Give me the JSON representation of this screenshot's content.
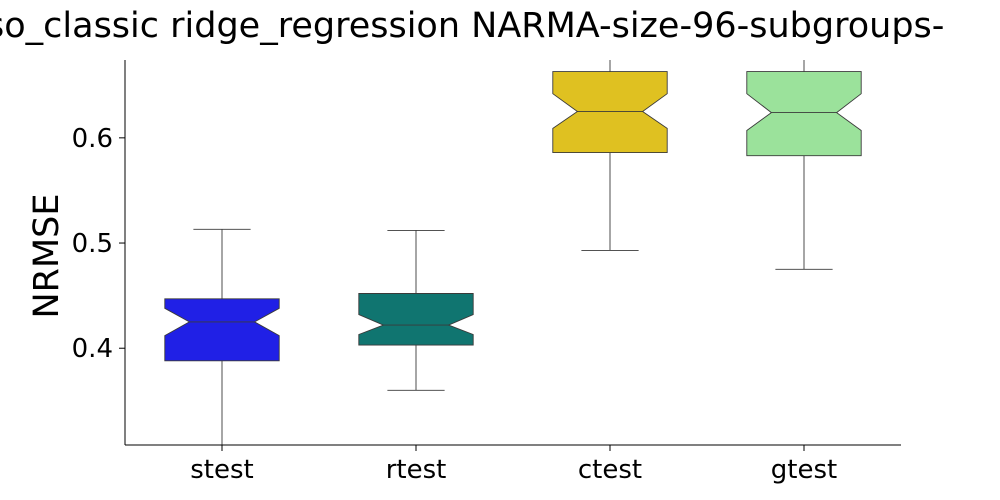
{
  "chart_data": {
    "type": "boxplot",
    "title": "so_classic ridge_regression NARMA-size-96-subgroups-",
    "xlabel": "",
    "ylabel": "NRMSE",
    "ylim": [
      0.308,
      0.674
    ],
    "yticks": [
      0.4,
      0.5,
      0.6
    ],
    "ytick_labels": [
      "0.4",
      "0.5",
      "0.6"
    ],
    "notched": true,
    "grid": false,
    "categories": [
      "stest",
      "rtest",
      "ctest",
      "gtest"
    ],
    "boxes": [
      {
        "label": "stest",
        "color": "#2020e6",
        "whislo": 0.3,
        "q1": 0.388,
        "med": 0.425,
        "q3": 0.447,
        "whishi": 0.513,
        "notch_lo": 0.412,
        "notch_hi": 0.438
      },
      {
        "label": "rtest",
        "color": "#107570",
        "whislo": 0.36,
        "q1": 0.403,
        "med": 0.422,
        "q3": 0.452,
        "whishi": 0.512,
        "notch_lo": 0.413,
        "notch_hi": 0.432
      },
      {
        "label": "ctest",
        "color": "#dfc121",
        "whislo": 0.493,
        "q1": 0.586,
        "med": 0.625,
        "q3": 0.663,
        "whishi": 0.7,
        "notch_lo": 0.609,
        "notch_hi": 0.642
      },
      {
        "label": "gtest",
        "color": "#9be29b",
        "whislo": 0.475,
        "q1": 0.583,
        "med": 0.624,
        "q3": 0.663,
        "whishi": 0.7,
        "notch_lo": 0.607,
        "notch_hi": 0.642
      }
    ]
  }
}
